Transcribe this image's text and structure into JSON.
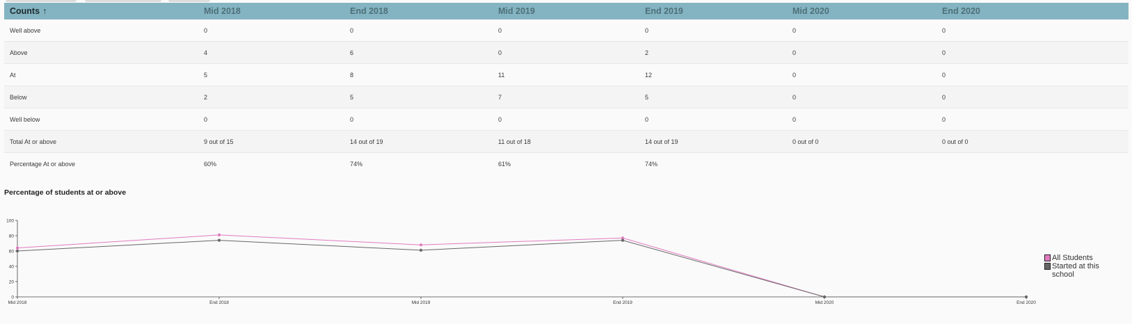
{
  "table": {
    "header": {
      "first": "Counts",
      "sort_icon": "↑",
      "columns": [
        "Mid 2018",
        "End 2018",
        "Mid 2019",
        "End 2019",
        "Mid 2020",
        "End 2020"
      ]
    },
    "rows": [
      {
        "label": "Well above",
        "cells": [
          "0",
          "0",
          "0",
          "0",
          "0",
          "0"
        ]
      },
      {
        "label": "Above",
        "cells": [
          "4",
          "6",
          "0",
          "2",
          "0",
          "0"
        ]
      },
      {
        "label": "At",
        "cells": [
          "5",
          "8",
          "11",
          "12",
          "0",
          "0"
        ]
      },
      {
        "label": "Below",
        "cells": [
          "2",
          "5",
          "7",
          "5",
          "0",
          "0"
        ]
      },
      {
        "label": "Well below",
        "cells": [
          "0",
          "0",
          "0",
          "0",
          "0",
          "0"
        ]
      },
      {
        "label": "Total At or above",
        "cells": [
          "9 out of 15",
          "14 out of 19",
          "11 out of 18",
          "14 out of 19",
          "0 out of 0",
          "0 out of 0"
        ]
      },
      {
        "label": "Percentage At or above",
        "cells": [
          "60%",
          "74%",
          "61%",
          "74%",
          "",
          ""
        ]
      }
    ]
  },
  "chart_title": "Percentage of students at or above",
  "chart_data": {
    "type": "line",
    "categories": [
      "Mid 2018",
      "End 2018",
      "Mid 2019",
      "End 2019",
      "Mid 2020",
      "End 2020"
    ],
    "series": [
      {
        "name": "All Students",
        "color": "#e07ac0",
        "values": [
          64,
          81,
          68,
          77,
          0,
          0
        ]
      },
      {
        "name": "Started at this school",
        "color": "#666666",
        "values": [
          60,
          74,
          61,
          74,
          0,
          0
        ]
      }
    ],
    "ylim": [
      0,
      100
    ],
    "yticks": [
      "0",
      "20",
      "40",
      "60",
      "80",
      "100"
    ],
    "grid": false,
    "legend": "right"
  }
}
